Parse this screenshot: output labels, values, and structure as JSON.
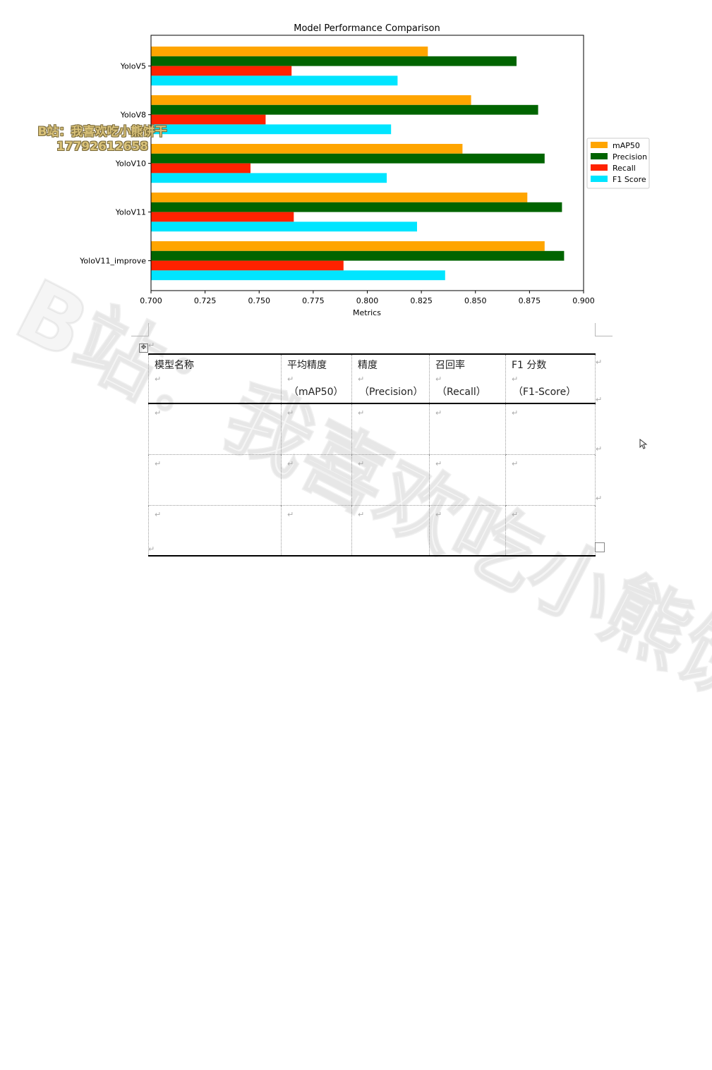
{
  "chart_data": {
    "type": "bar",
    "orientation": "horizontal",
    "title": "Model Performance Comparison",
    "xlabel": "Metrics",
    "ylabel": "",
    "xlim": [
      0.7,
      0.9
    ],
    "xticks": [
      "0.700",
      "0.725",
      "0.750",
      "0.775",
      "0.800",
      "0.825",
      "0.850",
      "0.875",
      "0.900"
    ],
    "categories": [
      "YoloV5",
      "YoloV8",
      "YoloV10",
      "YoloV11",
      "YoloV11_improve"
    ],
    "series": [
      {
        "name": "mAP50",
        "color": "#ffa500",
        "values": [
          0.828,
          0.848,
          0.844,
          0.874,
          0.882
        ]
      },
      {
        "name": "Precision",
        "color": "#006400",
        "values": [
          0.869,
          0.879,
          0.882,
          0.89,
          0.891
        ]
      },
      {
        "name": "Recall",
        "color": "#ff2200",
        "values": [
          0.765,
          0.753,
          0.746,
          0.766,
          0.789
        ]
      },
      {
        "name": "F1 Score",
        "color": "#00e5ff",
        "values": [
          0.814,
          0.811,
          0.809,
          0.823,
          0.836
        ]
      }
    ],
    "legend_position": "center-right",
    "grid": false
  },
  "stamp": {
    "line1": "B站：我喜欢吃小熊饼干",
    "line2": "17792612658"
  },
  "table": {
    "headers": [
      {
        "line1": "模型名称",
        "line2": ""
      },
      {
        "line1": "平均精度",
        "line2": "（mAP50）"
      },
      {
        "line1": "精度",
        "line2": "（Precision）"
      },
      {
        "line1": "召回率",
        "line2": "（Recall）"
      },
      {
        "line1": "F1 分数",
        "line2": "（F1-Score）"
      }
    ],
    "rows": [
      [
        "",
        "",
        "",
        "",
        ""
      ],
      [
        "",
        "",
        "",
        "",
        ""
      ],
      [
        "",
        "",
        "",
        "",
        ""
      ]
    ]
  },
  "paragraph_mark": "↵",
  "move_handle_icon": "✥"
}
